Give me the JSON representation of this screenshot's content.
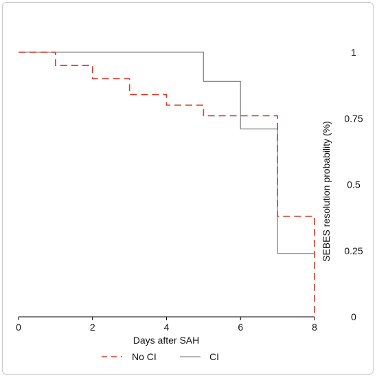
{
  "chart_data": {
    "type": "line",
    "step": true,
    "xlabel": "Days after SAH",
    "ylabel": "SEBES resolution probability (%)",
    "xlim": [
      0,
      8
    ],
    "ylim": [
      0,
      1
    ],
    "x_ticks": [
      "0",
      "2",
      "4",
      "6",
      "8"
    ],
    "y_ticks": [
      "0",
      "0.25",
      "0.5",
      "0.75",
      "1"
    ],
    "y_axis_position": "right",
    "grid": false,
    "legend_position": "bottom",
    "series": [
      {
        "name": "No CI",
        "color": "#d93a2b",
        "dash": "dashed",
        "x": [
          0,
          1,
          2,
          3,
          4,
          5,
          7,
          8
        ],
        "y": [
          1,
          0.95,
          0.9,
          0.84,
          0.8,
          0.76,
          0.38,
          0
        ]
      },
      {
        "name": "CI",
        "color": "#888888",
        "dash": "solid",
        "x": [
          0,
          5,
          6,
          7,
          8
        ],
        "y": [
          1,
          0.89,
          0.71,
          0.24,
          0.24
        ]
      }
    ]
  }
}
